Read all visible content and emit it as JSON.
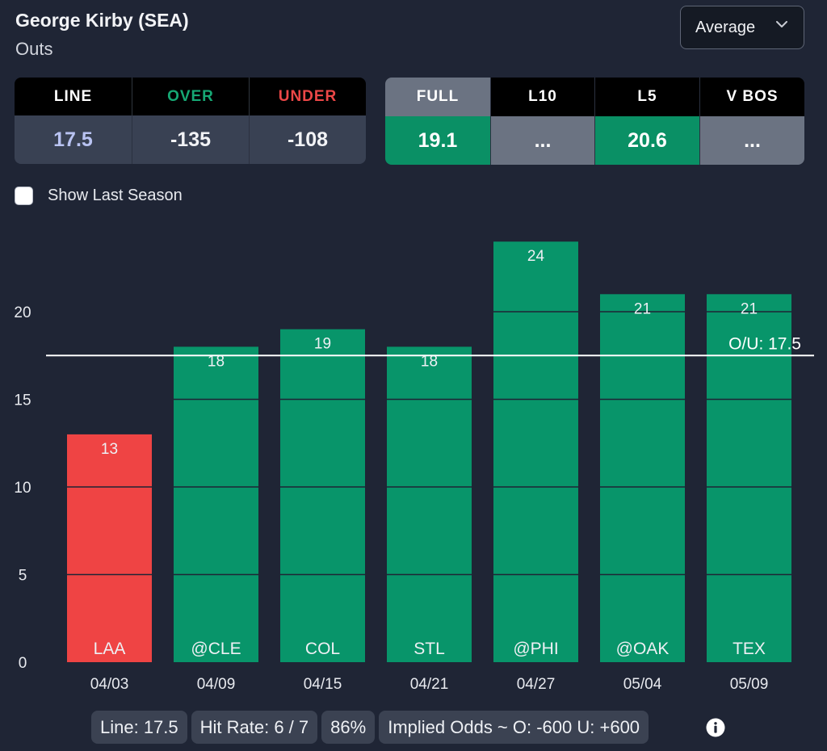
{
  "header": {
    "player": "George Kirby (SEA)",
    "stat": "Outs",
    "selector_value": "Average"
  },
  "odds": {
    "line_label": "LINE",
    "over_label": "OVER",
    "under_label": "UNDER",
    "line_value": "17.5",
    "over_value": "-135",
    "under_value": "-108",
    "colors": {
      "line_label": "#ffffff",
      "over_label": "#16a874",
      "under_label": "#ec4747",
      "line_value": "#b9c3f2"
    }
  },
  "averages": {
    "headers": [
      "FULL",
      "L10",
      "L5",
      "V BOS"
    ],
    "values": [
      "19.1",
      "...",
      "20.6",
      "..."
    ],
    "cell_styles": [
      "green",
      "gray",
      "green",
      "gray"
    ],
    "active_index": 0
  },
  "toggle": {
    "label": "Show Last Season",
    "checked": false
  },
  "chart_data": {
    "type": "bar",
    "categories": [
      "04/03",
      "04/09",
      "04/15",
      "04/21",
      "04/27",
      "05/04",
      "05/09"
    ],
    "opponents": [
      "LAA",
      "@CLE",
      "COL",
      "STL",
      "@PHI",
      "@OAK",
      "TEX"
    ],
    "values": [
      13,
      18,
      19,
      18,
      24,
      21,
      21
    ],
    "bar_colors": [
      "#ef4444",
      "#08956a",
      "#08956a",
      "#08956a",
      "#08956a",
      "#08956a",
      "#08956a"
    ],
    "line_value": 17.5,
    "line_label": "O/U: 17.5",
    "yticks": [
      0,
      5,
      10,
      15,
      20
    ],
    "ylim": [
      0,
      25
    ],
    "title": "",
    "xlabel": "",
    "ylabel": ""
  },
  "footer": {
    "line": "Line: 17.5",
    "hit_rate": "Hit Rate: 6 / 7",
    "percent": "86%",
    "implied": "Implied Odds ~ O: -600 U: +600"
  },
  "icons": {
    "info": "info-icon",
    "dropdown": "chevron-down-icon"
  }
}
